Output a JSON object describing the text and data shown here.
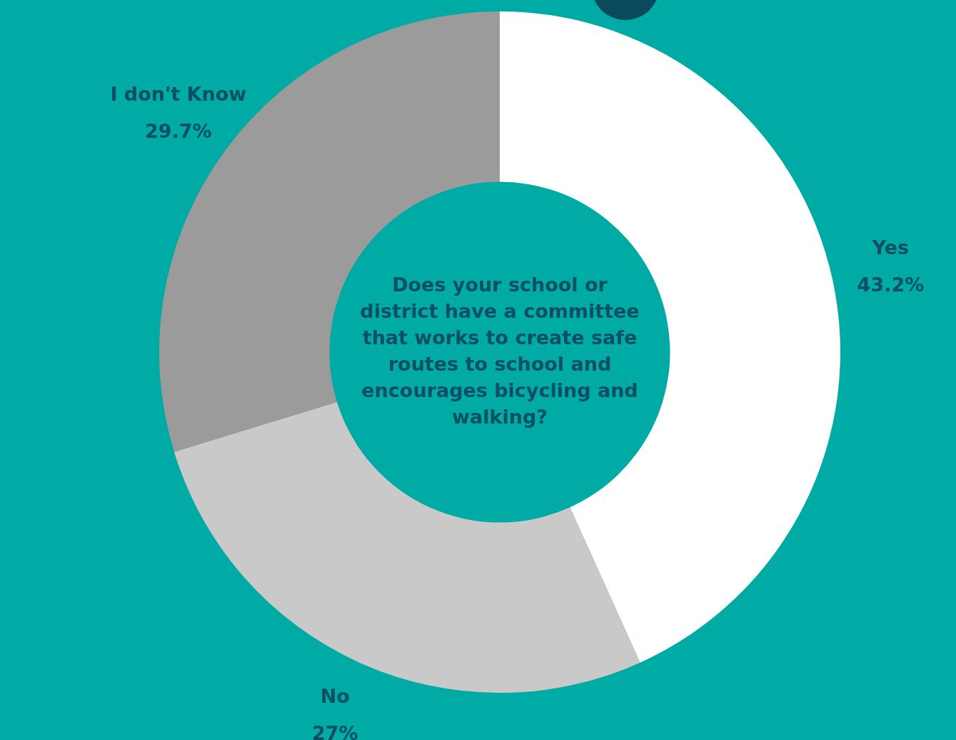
{
  "chart_data": {
    "type": "donut",
    "title": "Does your school or district have a committee that works to create safe routes to school and encourages bicycling and walking?",
    "categories": [
      "Yes",
      "No",
      "I don't Know"
    ],
    "values": [
      43.2,
      27,
      29.7
    ],
    "value_labels": [
      "43.2%",
      "27%",
      "29.7%"
    ],
    "colors": [
      "#ffffff",
      "#c9c9c9",
      "#9b9b9b"
    ],
    "legend": false
  }
}
